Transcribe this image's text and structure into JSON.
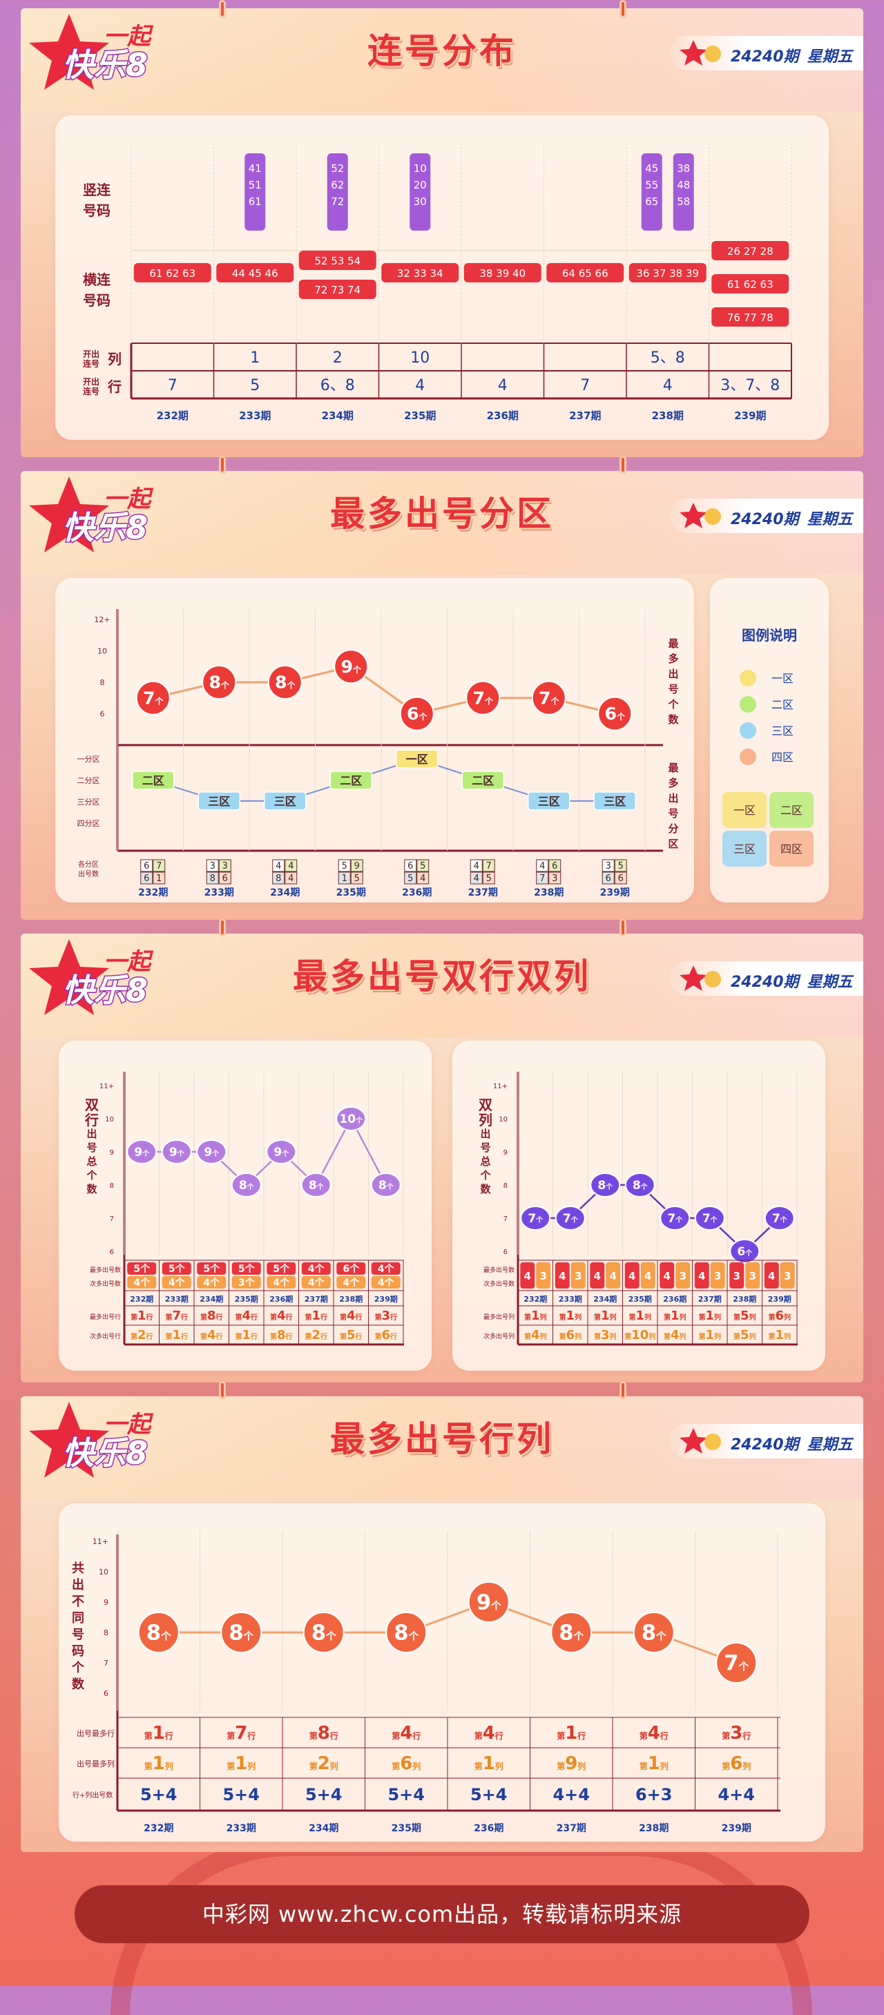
{
  "header": {
    "logo_text_top": "一起",
    "logo_text_main": "快乐8",
    "issue": "24240期",
    "weekday": "星期五"
  },
  "sections": {
    "s1_title": "连号分布",
    "s2_title": "最多出号分区",
    "s3_title": "最多出号双行双列",
    "s4_title": "最多出号行列"
  },
  "issues": [
    "232期",
    "233期",
    "234期",
    "235期",
    "236期",
    "237期",
    "238期",
    "239期"
  ],
  "chart_data": [
    {
      "type": "table",
      "title": "连号分布",
      "row_labels": [
        "竖连号码",
        "横连号码",
        "开出连号 列",
        "开出连号 行"
      ],
      "vertical_label": [
        "竖连",
        "号码"
      ],
      "horizontal_label": [
        "横连",
        "号码"
      ],
      "col_label": "开出连号",
      "col_label_suffix": "列",
      "row_label": "开出连号",
      "row_label_suffix": "行",
      "categories": [
        "232期",
        "233期",
        "234期",
        "235期",
        "236期",
        "237期",
        "238期",
        "239期"
      ],
      "vertical": [
        [],
        [
          [
            "41",
            "51",
            "61"
          ]
        ],
        [
          [
            "52",
            "62",
            "72"
          ]
        ],
        [
          [
            "10",
            "20",
            "30"
          ]
        ],
        [],
        [],
        [
          [
            "45",
            "55",
            "65"
          ],
          [
            "38",
            "48",
            "58"
          ]
        ],
        []
      ],
      "horizontal": [
        [
          "61 62 63"
        ],
        [
          "44 45 46"
        ],
        [
          "52 53 54",
          "72 73 74"
        ],
        [
          "32 33 34"
        ],
        [
          "38 39 40"
        ],
        [
          "64 65 66"
        ],
        [
          "36 37 38 39"
        ],
        [
          "26 27 28",
          "61 62 63",
          "76 77 78"
        ]
      ],
      "cols_open": [
        "",
        "1",
        "2",
        "10",
        "",
        "",
        "5、8",
        ""
      ],
      "rows_open": [
        "7",
        "5",
        "6、8",
        "4",
        "4",
        "7",
        "4",
        "3、7、8"
      ]
    },
    {
      "type": "line",
      "title": "最多出号分区",
      "categories": [
        "232期",
        "233期",
        "234期",
        "235期",
        "236期",
        "237期",
        "238期",
        "239期"
      ],
      "ylabel": "最多出号个数",
      "y_ticks": [
        "12+",
        "10",
        "8",
        "6"
      ],
      "values": [
        7,
        8,
        8,
        9,
        6,
        7,
        7,
        6
      ],
      "unit": "个",
      "zone_label": "最多出号分区",
      "zone_ticks": [
        "一分区",
        "二分区",
        "三分区",
        "四分区"
      ],
      "zones": [
        "二区",
        "三区",
        "三区",
        "二区",
        "一区",
        "二区",
        "三区",
        "三区"
      ],
      "zone_counts_label": [
        "各分区",
        "出号数"
      ],
      "zone_counts": [
        [
          "6",
          "7",
          "6",
          "1"
        ],
        [
          "3",
          "3",
          "8",
          "6"
        ],
        [
          "4",
          "4",
          "8",
          "4"
        ],
        [
          "5",
          "9",
          "1",
          "5"
        ],
        [
          "6",
          "5",
          "5",
          "4"
        ],
        [
          "4",
          "7",
          "4",
          "5"
        ],
        [
          "4",
          "6",
          "7",
          "3"
        ],
        [
          "3",
          "5",
          "6",
          "6"
        ]
      ],
      "legend_title": "图例说明",
      "legend": [
        {
          "name": "一区",
          "color": "#f9e27a"
        },
        {
          "name": "二区",
          "color": "#b8ec7a"
        },
        {
          "name": "三区",
          "color": "#9fd6f2"
        },
        {
          "name": "四区",
          "color": "#f8b38f"
        }
      ]
    },
    {
      "type": "line",
      "title": "双行",
      "ylabel": "双行出号总个数",
      "y_ticks": [
        "11+",
        "10",
        "9",
        "8",
        "7",
        "6"
      ],
      "categories": [
        "232期",
        "233期",
        "234期",
        "235期",
        "236期",
        "237期",
        "238期",
        "239期"
      ],
      "values": [
        9,
        9,
        9,
        8,
        9,
        8,
        10,
        8
      ],
      "unit": "个",
      "table": {
        "most_label": "最多出号数",
        "second_label": "次多出号数",
        "most_row_label": "最多出号行",
        "second_row_label": "次多出号行",
        "most": [
          "5",
          "5",
          "5",
          "5",
          "5",
          "4",
          "6",
          "4"
        ],
        "second": [
          "4",
          "4",
          "4",
          "3",
          "4",
          "4",
          "4",
          "4"
        ],
        "most_row": [
          "1",
          "7",
          "8",
          "4",
          "4",
          "1",
          "4",
          "3"
        ],
        "second_row": [
          "2",
          "1",
          "4",
          "1",
          "8",
          "2",
          "5",
          "6"
        ],
        "prefix": "第",
        "suffix": "行"
      }
    },
    {
      "type": "line",
      "title": "双列",
      "ylabel": "双列出号总个数",
      "y_ticks": [
        "11+",
        "10",
        "9",
        "8",
        "7",
        "6"
      ],
      "categories": [
        "232期",
        "233期",
        "234期",
        "235期",
        "236期",
        "237期",
        "238期",
        "239期"
      ],
      "values": [
        7,
        7,
        8,
        8,
        7,
        7,
        6,
        7
      ],
      "unit": "个",
      "table": {
        "most_label": "最多出号数",
        "second_label": "次多出号数",
        "most_col_label": "最多出号列",
        "second_col_label": "次多出号列",
        "pairs": [
          [
            "4",
            "3"
          ],
          [
            "4",
            "3"
          ],
          [
            "4",
            "4"
          ],
          [
            "4",
            "4"
          ],
          [
            "4",
            "3"
          ],
          [
            "4",
            "3"
          ],
          [
            "3",
            "3"
          ],
          [
            "4",
            "3"
          ]
        ],
        "most_col": [
          "1",
          "1",
          "1",
          "1",
          "1",
          "1",
          "5",
          "6"
        ],
        "second_col": [
          "4",
          "6",
          "3",
          "10",
          "4",
          "1",
          "5",
          "1"
        ],
        "prefix": "第",
        "suffix": "列"
      }
    },
    {
      "type": "line",
      "title": "最多出号行列",
      "ylabel": "共出不同号码个数",
      "y_ticks": [
        "11+",
        "10",
        "9",
        "8",
        "7",
        "6"
      ],
      "categories": [
        "232期",
        "233期",
        "234期",
        "235期",
        "236期",
        "237期",
        "238期",
        "239期"
      ],
      "values": [
        8,
        8,
        8,
        8,
        9,
        8,
        8,
        7
      ],
      "unit": "个",
      "table": {
        "most_row_label": "出号最多行",
        "most_col_label": "出号最多列",
        "sum_label": "行+列出号数",
        "most_row": [
          "1",
          "7",
          "8",
          "4",
          "4",
          "1",
          "4",
          "3"
        ],
        "most_col": [
          "1",
          "1",
          "2",
          "6",
          "1",
          "9",
          "1",
          "6"
        ],
        "sum": [
          "5+4",
          "5+4",
          "5+4",
          "5+4",
          "5+4",
          "4+4",
          "6+3",
          "4+4"
        ],
        "prefix": "第",
        "row_suffix": "行",
        "col_suffix": "列"
      }
    }
  ],
  "footer": "中彩网 www.zhcw.com出品，转载请标明来源",
  "colors": {
    "accent_red": "#e8323a",
    "ball_orange": "#f06540",
    "purple": "#9a55d8",
    "navy": "#1f3f9e"
  }
}
